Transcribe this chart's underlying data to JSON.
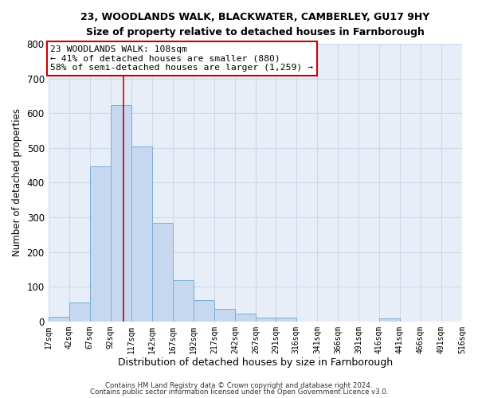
{
  "title": "23, WOODLANDS WALK, BLACKWATER, CAMBERLEY, GU17 9HY",
  "subtitle": "Size of property relative to detached houses in Farnborough",
  "xlabel": "Distribution of detached houses by size in Farnborough",
  "ylabel": "Number of detached properties",
  "bin_edges": [
    17,
    42,
    67,
    92,
    117,
    142,
    167,
    192,
    217,
    242,
    267,
    291,
    316,
    341,
    366,
    391,
    416,
    441,
    466,
    491,
    516
  ],
  "bar_heights": [
    13,
    55,
    447,
    624,
    505,
    283,
    118,
    62,
    37,
    22,
    10,
    10,
    0,
    0,
    0,
    0,
    8,
    0,
    0,
    0
  ],
  "bar_color": "#c5d8f0",
  "bar_edge_color": "#7aafd4",
  "property_line_x": 108,
  "property_line_color": "#cc0000",
  "annotation_line1": "23 WOODLANDS WALK: 108sqm",
  "annotation_line2": "← 41% of detached houses are smaller (880)",
  "annotation_line3": "58% of semi-detached houses are larger (1,259) →",
  "annotation_box_color": "#ffffff",
  "annotation_box_edge": "#cc0000",
  "ylim": [
    0,
    800
  ],
  "yticks": [
    0,
    100,
    200,
    300,
    400,
    500,
    600,
    700,
    800
  ],
  "grid_color": "#d0d8e8",
  "background_color": "#e8eef8",
  "footer_line1": "Contains HM Land Registry data © Crown copyright and database right 2024.",
  "footer_line2": "Contains public sector information licensed under the Open Government Licence v3.0."
}
